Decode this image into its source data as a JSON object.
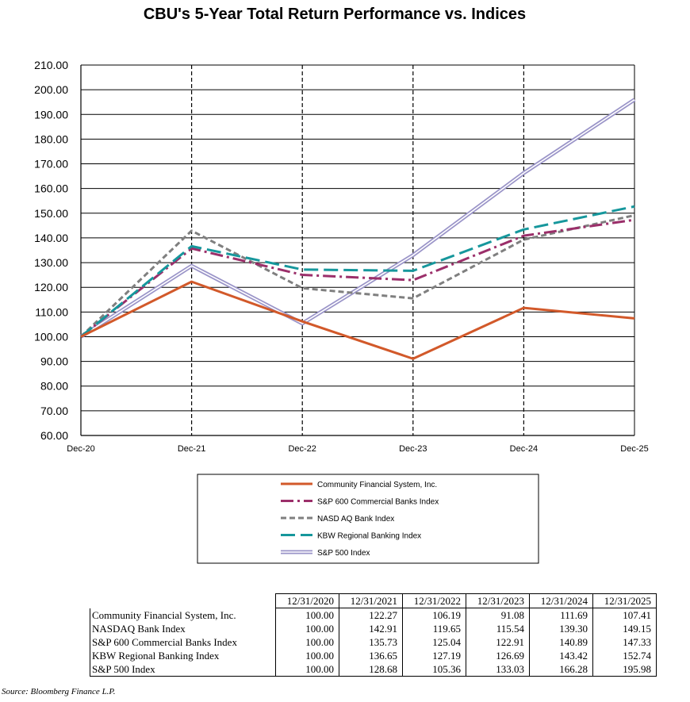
{
  "chart_data": {
    "type": "line",
    "title": "CBU's  5-Year Total Return Performance  vs. Indices",
    "x": [
      "Dec-20",
      "Dec-21",
      "Dec-22",
      "Dec-23",
      "Dec-24",
      "Dec-25"
    ],
    "ylim": [
      60,
      210
    ],
    "yticks": [
      "60.00",
      "70.00",
      "80.00",
      "90.00",
      "100.00",
      "110.00",
      "120.00",
      "130.00",
      "140.00",
      "150.00",
      "160.00",
      "170.00",
      "180.00",
      "190.00",
      "200.00",
      "210.00"
    ],
    "ytick_values": [
      60,
      70,
      80,
      90,
      100,
      110,
      120,
      130,
      140,
      150,
      160,
      170,
      180,
      190,
      200,
      210
    ],
    "grid": "horizontal solid, vertical dashed",
    "series": [
      {
        "name": "Community Financial System, Inc.",
        "values": [
          100.0,
          122.27,
          106.19,
          91.08,
          111.69,
          107.41
        ],
        "color": "#D2592A",
        "style": "solid"
      },
      {
        "name": "S&P 600 Commercial Banks Index",
        "values": [
          100.0,
          135.73,
          125.04,
          122.91,
          140.89,
          147.33
        ],
        "color": "#9B2F6A",
        "style": "dashdot"
      },
      {
        "name": "NASDAQ Bank Index",
        "values": [
          100.0,
          142.91,
          119.65,
          115.54,
          139.3,
          149.15
        ],
        "color": "#7F7F7F",
        "style": "dash"
      },
      {
        "name": "KBW Regional Banking Index",
        "values": [
          100.0,
          136.65,
          127.19,
          126.69,
          143.42,
          152.74
        ],
        "color": "#16979C",
        "style": "longdash"
      },
      {
        "name": "S&P 500 Index",
        "values": [
          100.0,
          128.68,
          105.36,
          133.03,
          166.28,
          195.98
        ],
        "color": "#9A94C8",
        "style": "double"
      }
    ],
    "legend": {
      "placement": "below chart",
      "labels": [
        "Community Financial System, Inc.",
        "S&P 600 Commercial Banks Index",
        "NASD AQ Bank Index",
        "KBW Regional Banking Index",
        "S&P 500 Index"
      ]
    }
  },
  "table": {
    "headers": [
      "12/31/2020",
      "12/31/2021",
      "12/31/2022",
      "12/31/2023",
      "12/31/2024",
      "12/31/2025"
    ],
    "rows": [
      {
        "label": "Community Financial System, Inc.",
        "values": [
          "100.00",
          "122.27",
          "106.19",
          "91.08",
          "111.69",
          "107.41"
        ]
      },
      {
        "label": "NASDAQ Bank Index",
        "values": [
          "100.00",
          "142.91",
          "119.65",
          "115.54",
          "139.30",
          "149.15"
        ]
      },
      {
        "label": "S&P 600 Commercial Banks Index",
        "values": [
          "100.00",
          "135.73",
          "125.04",
          "122.91",
          "140.89",
          "147.33"
        ]
      },
      {
        "label": "KBW Regional Banking Index",
        "values": [
          "100.00",
          "136.65",
          "127.19",
          "126.69",
          "143.42",
          "152.74"
        ]
      },
      {
        "label": "S&P 500 Index",
        "values": [
          "100.00",
          "128.68",
          "105.36",
          "133.03",
          "166.28",
          "195.98"
        ]
      }
    ]
  },
  "source": "Source: Bloomberg Finance L.P."
}
